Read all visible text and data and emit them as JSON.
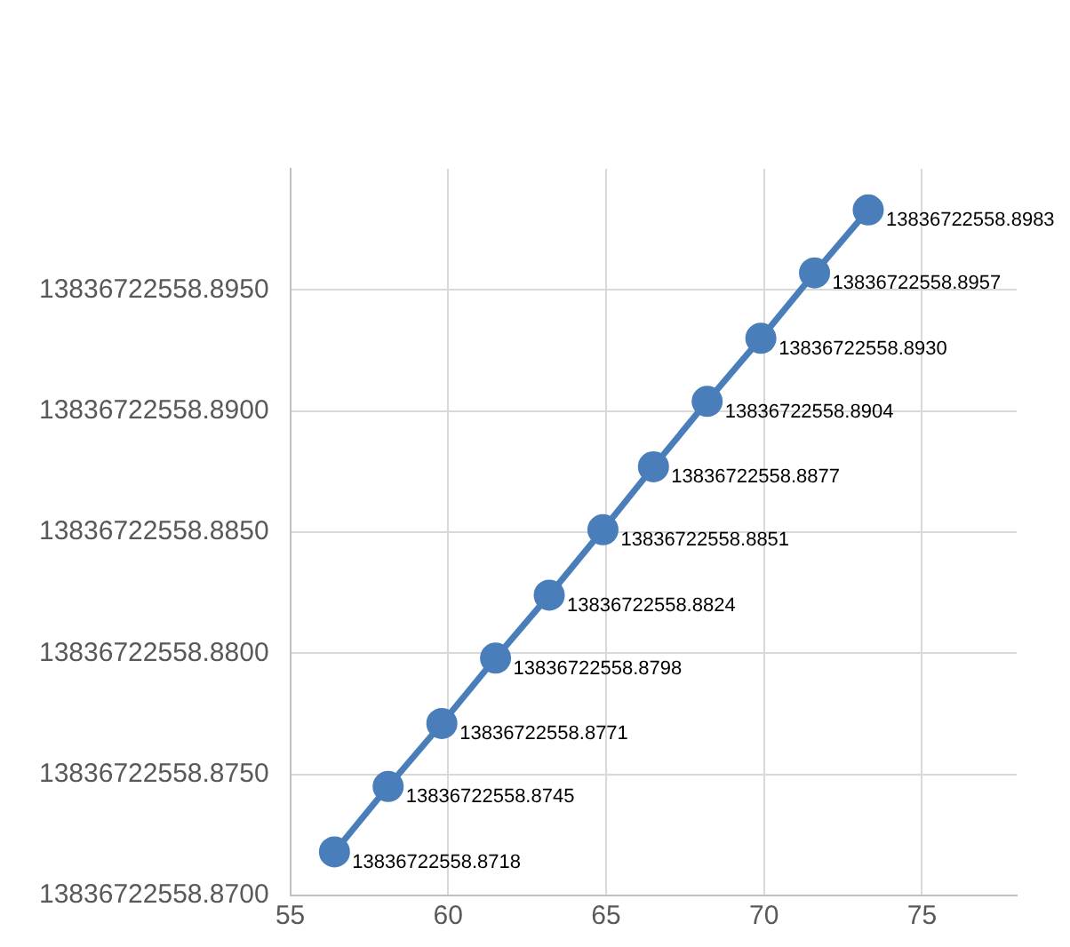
{
  "chart_data": {
    "type": "line",
    "x": [
      56.4,
      58.1,
      59.8,
      61.5,
      63.2,
      64.9,
      66.5,
      68.2,
      69.9,
      71.6,
      73.3
    ],
    "series": [
      {
        "color": "#4a7ebb",
        "values": [
          13836722558.8718,
          13836722558.8745,
          13836722558.8771,
          13836722558.8798,
          13836722558.8824,
          13836722558.8851,
          13836722558.8877,
          13836722558.8904,
          13836722558.893,
          13836722558.8957,
          13836722558.8983
        ],
        "value_labels": [
          "13836722558.8718",
          "13836722558.8745",
          "13836722558.8771",
          "13836722558.8798",
          "13836722558.8824",
          "13836722558.8851",
          "13836722558.8877",
          "13836722558.8904",
          "13836722558.8930",
          "13836722558.8957",
          "13836722558.8983"
        ]
      }
    ],
    "xlim": [
      55,
      78
    ],
    "xticks": [
      55,
      60,
      65,
      70,
      75
    ],
    "ylim": [
      13836722558.87,
      13836722558.9
    ],
    "yticks": [
      {
        "value": 13836722558.87,
        "label": "13836722558.8700"
      },
      {
        "value": 13836722558.875,
        "label": "13836722558.8750"
      },
      {
        "value": 13836722558.88,
        "label": "13836722558.8800"
      },
      {
        "value": 13836722558.885,
        "label": "13836722558.8850"
      },
      {
        "value": 13836722558.89,
        "label": "13836722558.8900"
      },
      {
        "value": 13836722558.895,
        "label": "13836722558.8950"
      }
    ],
    "grid": true,
    "marker": "circle",
    "line_style": "solid",
    "legend": false
  }
}
